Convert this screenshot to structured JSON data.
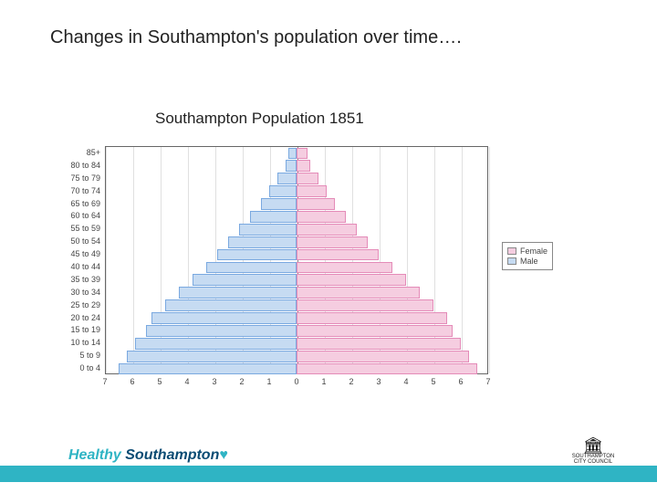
{
  "slide": {
    "title": "Changes in Southampton's population over time….",
    "chart_title": "Southampton Population 1851"
  },
  "pyramid": {
    "type": "population-pyramid",
    "background_color": "#ffffff",
    "grid_color": "#e0e0e0",
    "axis_color": "#666666",
    "label_fontsize": 9,
    "xlim": [
      -7,
      7
    ],
    "xtick_step": 1,
    "x_ticks": [
      7,
      6,
      5,
      4,
      3,
      2,
      1,
      0,
      1,
      2,
      3,
      4,
      5,
      6,
      7
    ],
    "age_bands": [
      "85+",
      "80 to 84",
      "75 to 79",
      "70 to 74",
      "65 to 69",
      "60 to 64",
      "55 to 59",
      "50 to 54",
      "45 to 49",
      "40 to 44",
      "35 to 39",
      "30 to 34",
      "25 to 29",
      "20 to 24",
      "15 to 19",
      "10 to 14",
      "5 to 9",
      "0 to 4"
    ],
    "male": [
      0.3,
      0.4,
      0.7,
      1.0,
      1.3,
      1.7,
      2.1,
      2.5,
      2.9,
      3.3,
      3.8,
      4.3,
      4.8,
      5.3,
      5.5,
      5.9,
      6.2,
      6.5
    ],
    "female": [
      0.4,
      0.5,
      0.8,
      1.1,
      1.4,
      1.8,
      2.2,
      2.6,
      3.0,
      3.5,
      4.0,
      4.5,
      5.0,
      5.5,
      5.7,
      6.0,
      6.3,
      6.6
    ],
    "male_fill": "#c6dbf2",
    "male_border": "#7aa9e0",
    "female_fill": "#f5cde0",
    "female_border": "#e48bb8"
  },
  "legend": {
    "items": [
      {
        "label": "Female",
        "color": "#f5cde0"
      },
      {
        "label": "Male",
        "color": "#c6dbf2"
      }
    ]
  },
  "footer": {
    "brand_word1": "Healthy",
    "brand_word2": "Southampton",
    "brand_color1": "#2fb4c4",
    "brand_color2": "#0a4b73",
    "heart_color": "#2fb4c4",
    "bar_color": "#2fb4c4",
    "council_top": "SOUTHAMPTON",
    "council_bottom": "CITY COUNCIL"
  }
}
